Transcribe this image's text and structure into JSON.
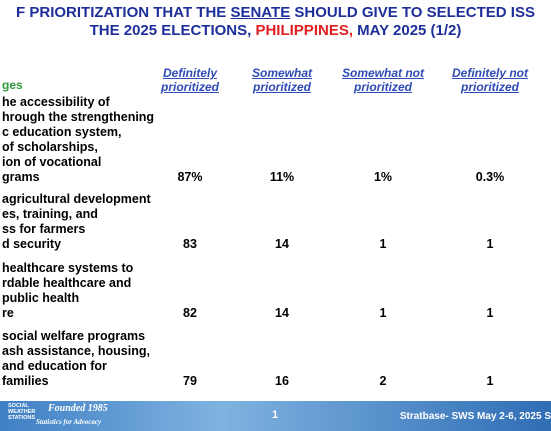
{
  "title": {
    "line1": [
      "F PRIORITIZATION THAT THE ",
      "SENATE",
      " SHOULD GIVE TO SELECTED ISS"
    ],
    "line2": [
      "THE 2025 ELECTIONS, ",
      "PHILIPPINES,",
      " MAY 2025 (1/2)"
    ]
  },
  "table": {
    "stub_header": "ges",
    "headers": [
      [
        "Definitely",
        "prioritized"
      ],
      [
        "Somewhat",
        "prioritized"
      ],
      [
        "Somewhat not",
        "prioritized"
      ],
      [
        "Definitely not",
        "prioritized"
      ]
    ],
    "rows": [
      {
        "label": [
          "he accessibility of",
          "hrough the strengthening",
          "c education system,",
          "of scholarships,",
          "ion of vocational",
          "grams"
        ],
        "cells": [
          "87%",
          "11%",
          "1%",
          "0.3%"
        ]
      },
      {
        "label": [
          "agricultural development",
          "es, training, and",
          "ss for farmers",
          "d security"
        ],
        "cells": [
          "83",
          "14",
          "1",
          "1"
        ]
      },
      {
        "label": [
          "healthcare systems to",
          "rdable healthcare and",
          "public health",
          "re"
        ],
        "cells": [
          "82",
          "14",
          "1",
          "1"
        ]
      },
      {
        "label": [
          "social welfare programs",
          "ash assistance, housing,",
          "and education for",
          "families"
        ],
        "cells": [
          "79",
          "16",
          "2",
          "1"
        ]
      }
    ]
  },
  "footer": {
    "logo": [
      "SOCIAL",
      "WEATHER",
      "STATIONS"
    ],
    "founded": "Founded 1985",
    "tagline": "Statistics for Advocacy",
    "page": "1",
    "source": "Stratbase- SWS May 2-6, 2025 S"
  }
}
